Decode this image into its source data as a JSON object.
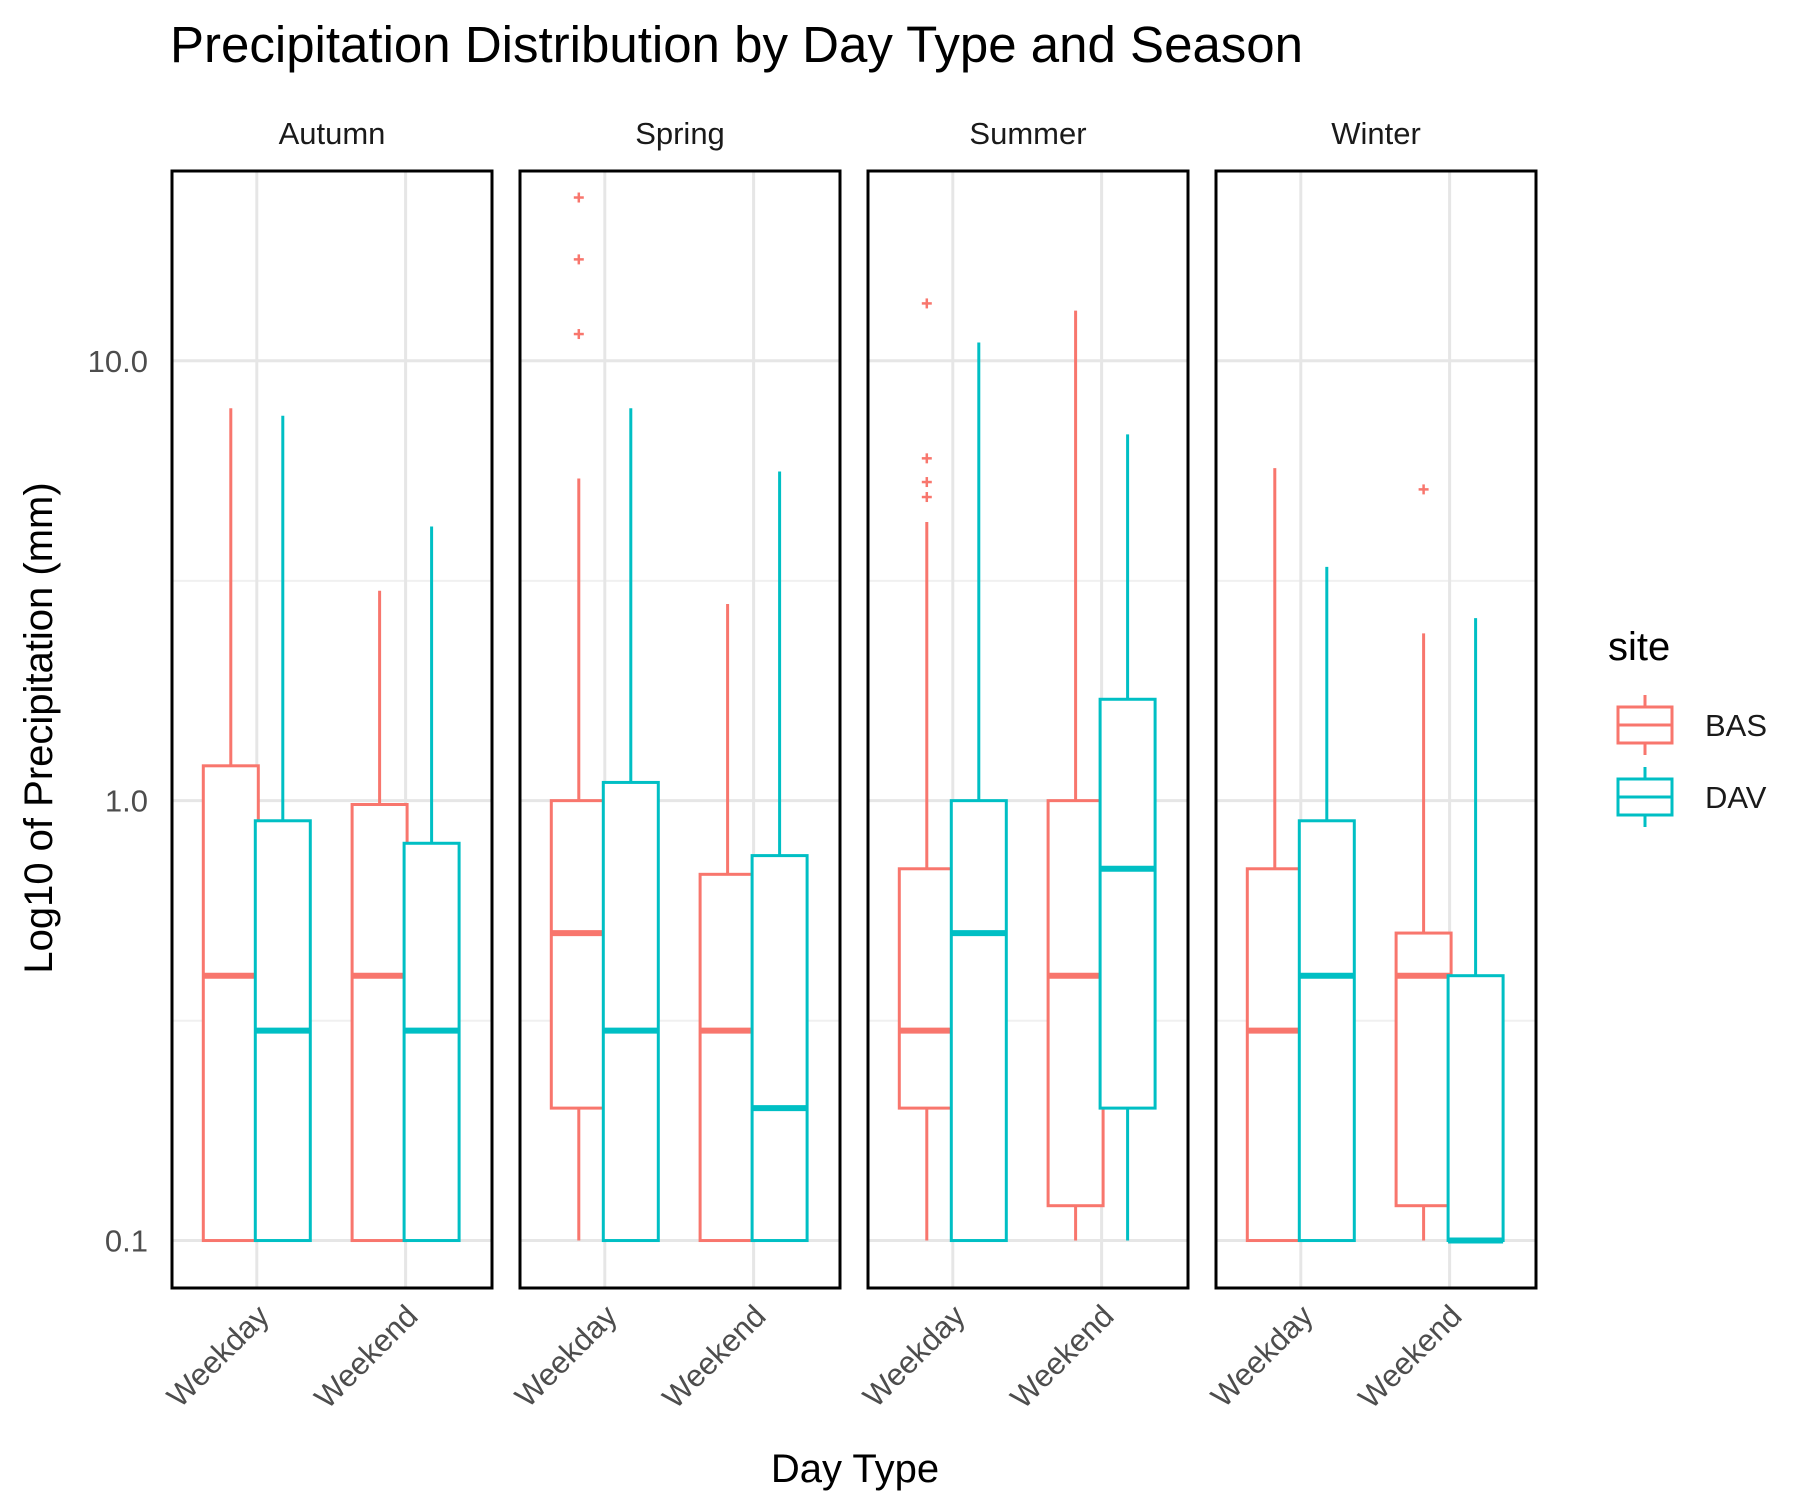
{
  "chart_data": {
    "type": "boxplot",
    "title": "Precipitation Distribution by Day Type and Season",
    "xlabel": "Day Type",
    "ylabel": "Log10 of Precipitation (mm)",
    "y_scale": "log10",
    "ylim": [
      0.078,
      27
    ],
    "y_ticks": [
      {
        "value": 0.1,
        "label": "0.1"
      },
      {
        "value": 1,
        "label": "1.0"
      },
      {
        "value": 10,
        "label": "10.0"
      }
    ],
    "y_minor": [
      0.316,
      3.16
    ],
    "categories": [
      "Weekday",
      "Weekend"
    ],
    "legend": {
      "title": "site",
      "entries": [
        {
          "name": "BAS",
          "color": "#F8766D"
        },
        {
          "name": "DAV",
          "color": "#00BFC4"
        }
      ]
    },
    "facets": [
      {
        "name": "Autumn",
        "boxes": [
          {
            "category": "Weekday",
            "site": "BAS",
            "whisker_low": 0.1,
            "q1": 0.1,
            "median": 0.4,
            "q3": 1.2,
            "whisker_high": 7.8,
            "outliers": []
          },
          {
            "category": "Weekday",
            "site": "DAV",
            "whisker_low": 0.1,
            "q1": 0.1,
            "median": 0.3,
            "q3": 0.9,
            "whisker_high": 7.5,
            "outliers": []
          },
          {
            "category": "Weekend",
            "site": "BAS",
            "whisker_low": 0.1,
            "q1": 0.1,
            "median": 0.4,
            "q3": 0.98,
            "whisker_high": 3.0,
            "outliers": []
          },
          {
            "category": "Weekend",
            "site": "DAV",
            "whisker_low": 0.1,
            "q1": 0.1,
            "median": 0.3,
            "q3": 0.8,
            "whisker_high": 4.2,
            "outliers": []
          }
        ]
      },
      {
        "name": "Spring",
        "boxes": [
          {
            "category": "Weekday",
            "site": "BAS",
            "whisker_low": 0.1,
            "q1": 0.2,
            "median": 0.5,
            "q3": 1.0,
            "whisker_high": 5.4,
            "outliers": [
              11.5,
              17.0,
              23.5
            ]
          },
          {
            "category": "Weekday",
            "site": "DAV",
            "whisker_low": 0.1,
            "q1": 0.1,
            "median": 0.3,
            "q3": 1.1,
            "whisker_high": 7.8,
            "outliers": []
          },
          {
            "category": "Weekend",
            "site": "BAS",
            "whisker_low": 0.1,
            "q1": 0.1,
            "median": 0.3,
            "q3": 0.68,
            "whisker_high": 2.8,
            "outliers": []
          },
          {
            "category": "Weekend",
            "site": "DAV",
            "whisker_low": 0.1,
            "q1": 0.1,
            "median": 0.2,
            "q3": 0.75,
            "whisker_high": 5.6,
            "outliers": []
          }
        ]
      },
      {
        "name": "Summer",
        "boxes": [
          {
            "category": "Weekday",
            "site": "BAS",
            "whisker_low": 0.1,
            "q1": 0.2,
            "median": 0.3,
            "q3": 0.7,
            "whisker_high": 4.3,
            "outliers": [
              4.9,
              5.3,
              6.0,
              13.5
            ]
          },
          {
            "category": "Weekday",
            "site": "DAV",
            "whisker_low": 0.1,
            "q1": 0.1,
            "median": 0.5,
            "q3": 1.0,
            "whisker_high": 11.0,
            "outliers": []
          },
          {
            "category": "Weekend",
            "site": "BAS",
            "whisker_low": 0.1,
            "q1": 0.12,
            "median": 0.4,
            "q3": 1.0,
            "whisker_high": 13.0,
            "outliers": []
          },
          {
            "category": "Weekend",
            "site": "DAV",
            "whisker_low": 0.1,
            "q1": 0.2,
            "median": 0.7,
            "q3": 1.7,
            "whisker_high": 6.8,
            "outliers": []
          }
        ]
      },
      {
        "name": "Winter",
        "boxes": [
          {
            "category": "Weekday",
            "site": "BAS",
            "whisker_low": 0.1,
            "q1": 0.1,
            "median": 0.3,
            "q3": 0.7,
            "whisker_high": 5.7,
            "outliers": []
          },
          {
            "category": "Weekday",
            "site": "DAV",
            "whisker_low": 0.1,
            "q1": 0.1,
            "median": 0.4,
            "q3": 0.9,
            "whisker_high": 3.4,
            "outliers": []
          },
          {
            "category": "Weekend",
            "site": "BAS",
            "whisker_low": 0.1,
            "q1": 0.12,
            "median": 0.4,
            "q3": 0.5,
            "whisker_high": 2.4,
            "outliers": [
              5.1
            ]
          },
          {
            "category": "Weekend",
            "site": "DAV",
            "whisker_low": 0.1,
            "q1": 0.1,
            "median": 0.1,
            "q3": 0.4,
            "whisker_high": 2.6,
            "outliers": []
          }
        ]
      }
    ]
  }
}
